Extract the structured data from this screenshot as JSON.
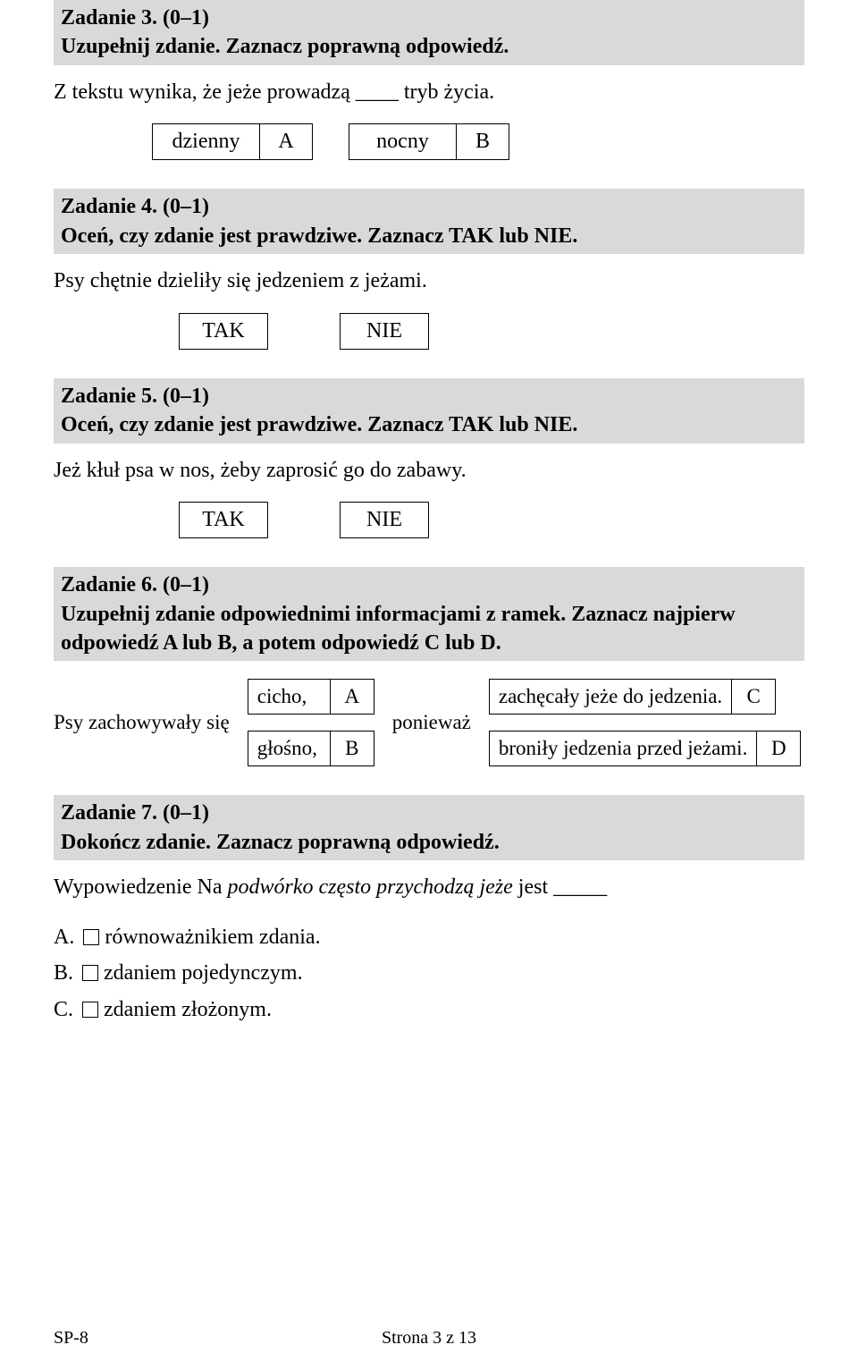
{
  "task3": {
    "title": "Zadanie 3. (0–1)",
    "instr": "Uzupełnij zdanie. Zaznacz poprawną odpowiedź.",
    "body": "Z tekstu wynika, że jeże prowadzą ____ tryb życia.",
    "options": [
      {
        "label": "dzienny",
        "letter": "A"
      },
      {
        "label": "nocny",
        "letter": "B"
      }
    ]
  },
  "task4": {
    "title": "Zadanie 4. (0–1)",
    "instr": "Oceń, czy zdanie jest prawdziwe. Zaznacz TAK lub NIE.",
    "body": "Psy chętnie dzieliły się jedzeniem z jeżami.",
    "tak": "TAK",
    "nie": "NIE"
  },
  "task5": {
    "title": "Zadanie 5. (0–1)",
    "instr": "Oceń, czy zdanie jest prawdziwe. Zaznacz TAK lub NIE.",
    "body": "Jeż kłuł psa w nos, żeby zaprosić go do zabawy.",
    "tak": "TAK",
    "nie": "NIE"
  },
  "task6": {
    "title": "Zadanie 6. (0–1)",
    "instr": "Uzupełnij zdanie odpowiednimi informacjami z ramek. Zaznacz najpierw odpowiedź A lub B, a potem odpowiedź C lub D.",
    "lead": "Psy zachowywały się",
    "middle": "ponieważ",
    "left": [
      {
        "label": "cicho,",
        "letter": "A"
      },
      {
        "label": "głośno,",
        "letter": "B"
      }
    ],
    "right": [
      {
        "label": "zachęcały jeże do jedzenia.",
        "letter": "C"
      },
      {
        "label": "broniły jedzenia przed jeżami.",
        "letter": "D"
      }
    ]
  },
  "task7": {
    "title": "Zadanie 7. (0–1)",
    "instr": "Dokończ zdanie. Zaznacz poprawną odpowiedź.",
    "body_prefix": "Wypowiedzenie Na ",
    "body_italic": "podwórko często przychodzą jeże",
    "body_suffix": " jest _____",
    "answers": {
      "a_prefix": "A. ",
      "a": "równoważnikiem zdania.",
      "b_prefix": "B. ",
      "b": "zdaniem pojedynczym.",
      "c_prefix": "C. ",
      "c": "zdaniem złożonym."
    }
  },
  "footer": {
    "left": "SP-8",
    "center": "Strona 3 z 13"
  }
}
